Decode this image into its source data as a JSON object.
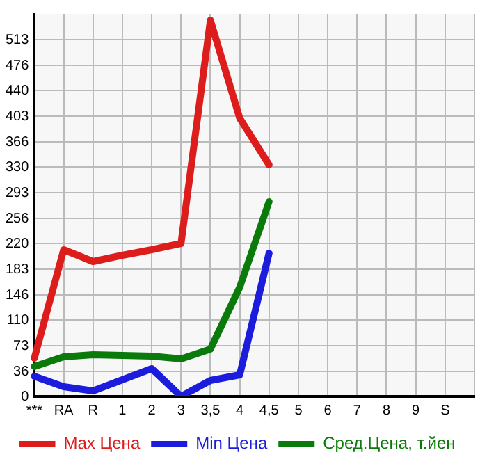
{
  "chart_data": {
    "type": "line",
    "categories": [
      "***",
      "RA",
      "R",
      "1",
      "2",
      "3",
      "3,5",
      "4",
      "4,5",
      "5",
      "6",
      "7",
      "8",
      "9",
      "S",
      null
    ],
    "series": [
      {
        "name": "Max Цена",
        "color": "#dd1c1c",
        "values": [
          55,
          211,
          194,
          203,
          211,
          220,
          541,
          400,
          333,
          null,
          null,
          null,
          null,
          null,
          null,
          null
        ]
      },
      {
        "name": "Min Цена",
        "color": "#1c1cdd",
        "values": [
          29,
          14,
          8,
          24,
          40,
          0,
          23,
          31,
          206,
          null,
          null,
          null,
          null,
          null,
          null,
          null
        ]
      },
      {
        "name": "Сред.Цена, т.йен",
        "color": "#0a7a0a",
        "values": [
          43,
          57,
          60,
          59,
          58,
          54,
          68,
          157,
          280,
          null,
          null,
          null,
          null,
          null,
          null,
          null
        ]
      }
    ],
    "ylim": [
      0,
      550
    ],
    "yticks": [
      0,
      36,
      73,
      110,
      146,
      183,
      220,
      256,
      293,
      330,
      366,
      403,
      440,
      476,
      513
    ],
    "grid": true,
    "legend": "bottom",
    "marker": "none",
    "line_style": "solid"
  }
}
